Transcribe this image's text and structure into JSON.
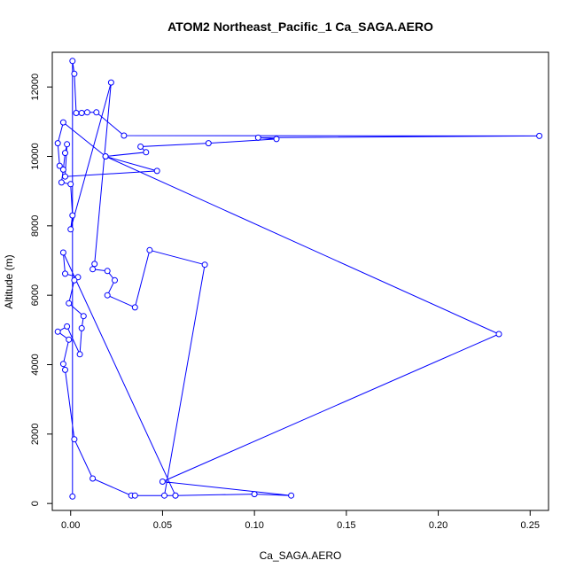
{
  "chart_data": {
    "type": "line",
    "title": "ATOM2 Northeast_Pacific_1 Ca_SAGA.AERO",
    "xlabel": "Ca_SAGA.AERO",
    "ylabel": "Altitude (m)",
    "xlim": [
      -0.01,
      0.26
    ],
    "ylim": [
      -200,
      13000
    ],
    "xticks": [
      0.0,
      0.05,
      0.1,
      0.15,
      0.2,
      0.25
    ],
    "xtick_labels": [
      "0.00",
      "0.05",
      "0.10",
      "0.15",
      "0.20",
      "0.25"
    ],
    "yticks": [
      0,
      2000,
      4000,
      6000,
      8000,
      10000,
      12000
    ],
    "ytick_labels": [
      "0",
      "2000",
      "4000",
      "6000",
      "8000",
      "10000",
      "12000"
    ],
    "series_color": "#0000ff",
    "grid": false,
    "points": [
      [
        0.001,
        200
      ],
      [
        0.001,
        12750
      ],
      [
        0.002,
        12380
      ],
      [
        0.003,
        11250
      ],
      [
        0.006,
        11250
      ],
      [
        0.009,
        11270
      ],
      [
        0.014,
        11270
      ],
      [
        0.029,
        10600
      ],
      [
        0.255,
        10590
      ],
      [
        0.102,
        10540
      ],
      [
        0.112,
        10500
      ],
      [
        0.075,
        10380
      ],
      [
        0.038,
        10280
      ],
      [
        0.041,
        10120
      ],
      [
        0.019,
        10000
      ],
      [
        0.047,
        9580
      ],
      [
        -0.003,
        9420
      ],
      [
        -0.002,
        10350
      ],
      [
        -0.003,
        10100
      ],
      [
        -0.004,
        9620
      ],
      [
        -0.005,
        9250
      ],
      [
        0.0,
        9200
      ],
      [
        0.001,
        8300
      ],
      [
        0.0,
        7900
      ],
      [
        0.022,
        12130
      ],
      [
        0.013,
        6900
      ],
      [
        0.012,
        6750
      ],
      [
        0.02,
        6700
      ],
      [
        0.024,
        6430
      ],
      [
        0.02,
        6000
      ],
      [
        0.035,
        5650
      ],
      [
        0.043,
        7300
      ],
      [
        0.073,
        6880
      ],
      [
        0.051,
        230
      ],
      [
        0.057,
        230
      ],
      [
        -0.004,
        7230
      ],
      [
        -0.003,
        6620
      ],
      [
        0.004,
        6520
      ],
      [
        0.002,
        6430
      ],
      [
        -0.001,
        5770
      ],
      [
        0.007,
        5400
      ],
      [
        0.006,
        5050
      ],
      [
        0.005,
        4300
      ],
      [
        -0.002,
        5100
      ],
      [
        -0.007,
        4950
      ],
      [
        -0.001,
        4720
      ],
      [
        -0.004,
        4020
      ],
      [
        -0.003,
        3850
      ],
      [
        0.002,
        1850
      ],
      [
        0.012,
        720
      ],
      [
        0.033,
        230
      ],
      [
        0.035,
        230
      ],
      [
        0.057,
        230
      ],
      [
        0.1,
        270
      ],
      [
        0.12,
        230
      ],
      [
        0.05,
        630
      ],
      [
        0.233,
        4880
      ],
      [
        0.019,
        10000
      ],
      [
        -0.004,
        10980
      ],
      [
        -0.007,
        10380
      ],
      [
        -0.006,
        9730
      ]
    ]
  }
}
